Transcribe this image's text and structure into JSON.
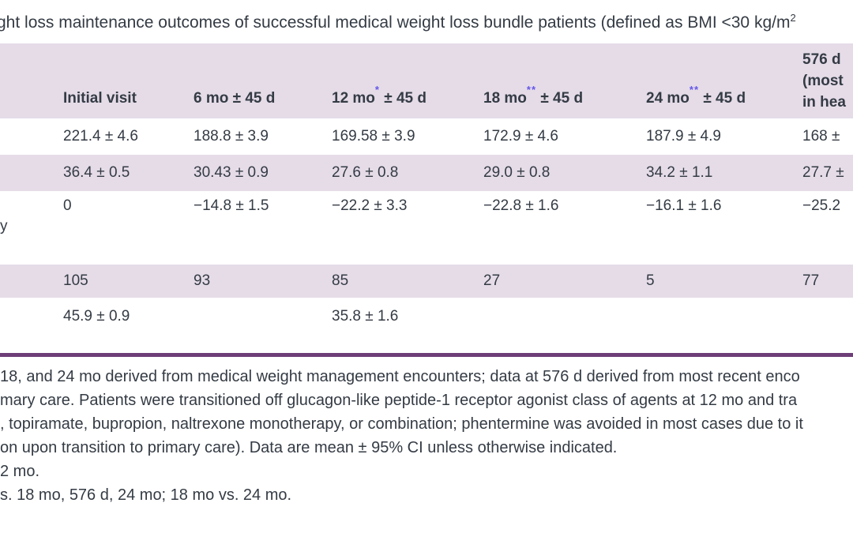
{
  "title": {
    "text": "ght loss maintenance outcomes of successful medical weight loss bundle patients (defined as BMI <30 kg/m",
    "sup": "2"
  },
  "colors": {
    "row_band": "#e5dce8",
    "bottom_rule": "#6e3e78",
    "asterisk": "#6456e8",
    "text": "#343b44"
  },
  "table": {
    "row_label_fragment": "y",
    "columns": [
      {
        "pre": "Initial visit",
        "sup": "",
        "post": ""
      },
      {
        "pre": "6 mo",
        "sup": "",
        "post": " ± 45 d"
      },
      {
        "pre": "12 mo",
        "sup": "*",
        "post": " ± 45 d"
      },
      {
        "pre": "18 mo",
        "sup": "**",
        "post": " ± 45 d"
      },
      {
        "pre": "24 mo",
        "sup": "**",
        "post": " ± 45 d"
      },
      {
        "lines": [
          "576 d",
          "(most",
          "in hea"
        ]
      }
    ],
    "rows": [
      {
        "cells": [
          "221.4 ± 4.6",
          "188.8 ± 3.9",
          "169.58 ± 3.9",
          "172.9 ± 4.6",
          "187.9 ± 4.9",
          "168 ±"
        ]
      },
      {
        "cells": [
          "36.4 ± 0.5",
          "30.43 ± 0.9",
          "27.6 ± 0.8",
          "29.0 ± 0.8",
          "34.2 ± 1.1",
          "27.7 ±"
        ]
      },
      {
        "cells": [
          "0",
          "−14.8 ± 1.5",
          "−22.2 ± 3.3",
          "−22.8 ± 1.6",
          "−16.1 ± 1.6",
          "−25.2"
        ]
      },
      {
        "cells": [
          "105",
          "93",
          "85",
          "27",
          "5",
          "77"
        ]
      },
      {
        "cells": [
          "45.9 ± 0.9",
          "",
          "35.8 ± 1.6",
          "",
          "",
          ""
        ]
      }
    ]
  },
  "footnotes": [
    "18, and 24 mo derived from medical weight management encounters; data at 576 d derived from most recent enco",
    "mary care. Patients were transitioned off glucagon-like peptide-1 receptor agonist class of agents at 12 mo and tra",
    ", topiramate, bupropion, naltrexone monotherapy, or combination; phentermine was avoided in most cases due to it",
    "on upon transition to primary care). Data are mean ± 95% CI unless otherwise indicated.",
    "2 mo.",
    "s. 18 mo, 576 d, 24 mo; 18 mo vs. 24 mo."
  ]
}
